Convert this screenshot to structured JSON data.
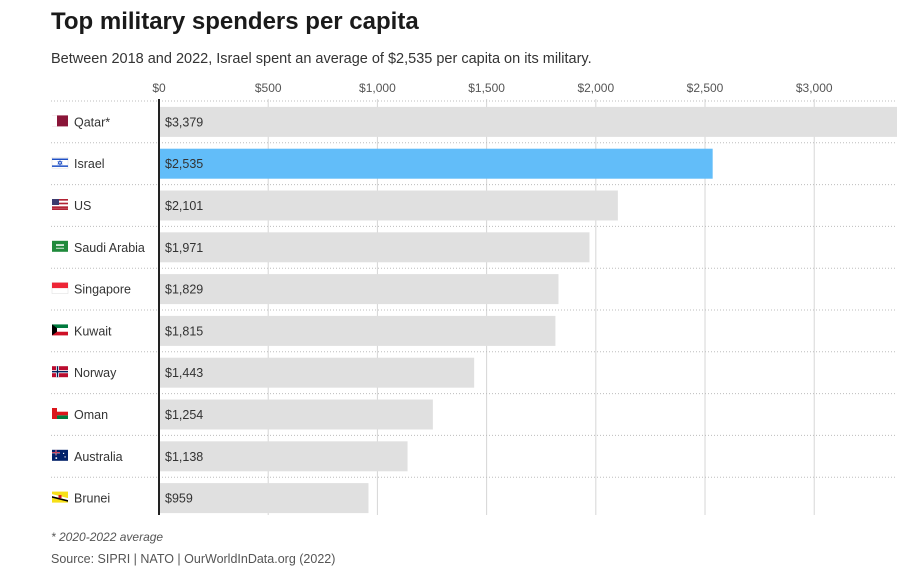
{
  "title": "Top military spenders per capita",
  "subtitle": "Between 2018 and 2022, Israel spent an average of $2,535 per capita on its military.",
  "footnote": "* 2020-2022 average",
  "source": "Source: SIPRI | NATO | OurWorldInData.org (2022)",
  "colors": {
    "bar": "#e0e0e0",
    "highlight": "#62bdf9",
    "axis": "#222222",
    "grid": "#d6d6d6"
  },
  "chart_data": {
    "type": "bar",
    "orientation": "horizontal",
    "xlim": [
      0,
      3379
    ],
    "ticks": [
      0,
      500,
      1000,
      1500,
      2000,
      2500,
      3000
    ],
    "tick_labels": [
      "$0",
      "$500",
      "$1,000",
      "$1,500",
      "$2,000",
      "$2,500",
      "$3,000"
    ],
    "categories": [
      "Qatar*",
      "Israel",
      "US",
      "Saudi Arabia",
      "Singapore",
      "Kuwait",
      "Norway",
      "Oman",
      "Australia",
      "Brunei"
    ],
    "values": [
      3379,
      2535,
      2101,
      1971,
      1829,
      1815,
      1443,
      1254,
      1138,
      959
    ],
    "value_labels": [
      "$3,379",
      "$2,535",
      "$2,101",
      "$1,971",
      "$1,829",
      "$1,815",
      "$1,443",
      "$1,254",
      "$1,138",
      "$959"
    ],
    "flag_icons": [
      "qatar-flag-icon",
      "israel-flag-icon",
      "us-flag-icon",
      "saudi-arabia-flag-icon",
      "singapore-flag-icon",
      "kuwait-flag-icon",
      "norway-flag-icon",
      "oman-flag-icon",
      "australia-flag-icon",
      "brunei-flag-icon"
    ],
    "highlighted_category": "Israel",
    "grid": true
  }
}
